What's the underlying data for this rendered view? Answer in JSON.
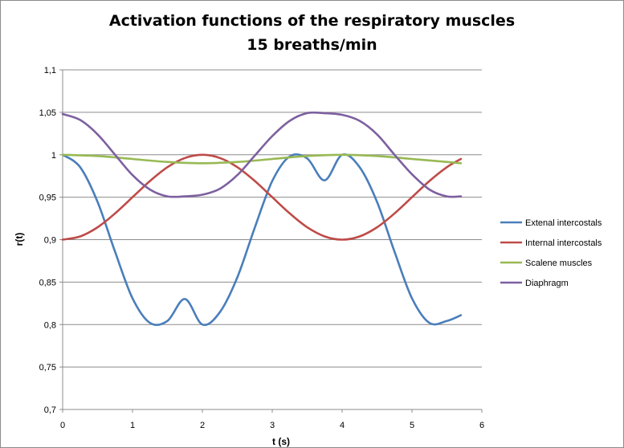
{
  "chart_data": {
    "type": "line",
    "title_line1": "Activation functions of the respiratory muscles",
    "title_line2": "15 breaths/min",
    "xlabel": "t (s)",
    "ylabel": "r(t)",
    "xlim": [
      0,
      6
    ],
    "ylim": [
      0.7,
      1.1
    ],
    "x_ticks": [
      "0",
      "1",
      "2",
      "3",
      "4",
      "5",
      "6"
    ],
    "y_ticks": [
      "0,7",
      "0,75",
      "0,8",
      "0,85",
      "0,9",
      "0,95",
      "1",
      "1,05",
      "1,1"
    ],
    "grid": "horizontal",
    "legend_position": "right",
    "series": [
      {
        "name": "Extenal intercostals",
        "color": "#4a7ebb",
        "x": [
          0,
          0.25,
          0.5,
          0.75,
          1.0,
          1.25,
          1.5,
          1.75,
          2.0,
          2.25,
          2.5,
          2.75,
          3.0,
          3.25,
          3.5,
          3.75,
          4.0,
          4.25,
          4.5,
          4.75,
          5.0,
          5.25,
          5.5,
          5.7
        ],
        "y": [
          1.0,
          0.9854,
          0.9444,
          0.8857,
          0.8309,
          0.8019,
          0.8043,
          0.8301,
          0.8,
          0.8146,
          0.8556,
          0.9143,
          0.9691,
          0.9981,
          0.9957,
          0.9699,
          1.0,
          0.9854,
          0.9444,
          0.8857,
          0.8309,
          0.8019,
          0.8043,
          0.811
        ]
      },
      {
        "name": "Internal intercostals",
        "color": "#be4b48",
        "x": [
          0,
          0.25,
          0.5,
          0.75,
          1.0,
          1.25,
          1.5,
          1.75,
          2.0,
          2.25,
          2.5,
          2.75,
          3.0,
          3.25,
          3.5,
          3.75,
          4.0,
          4.25,
          4.5,
          4.75,
          5.0,
          5.25,
          5.5,
          5.7
        ],
        "y": [
          0.9,
          0.9038,
          0.9146,
          0.9309,
          0.95,
          0.9691,
          0.9854,
          0.9962,
          1.0,
          0.9962,
          0.9854,
          0.9691,
          0.95,
          0.9309,
          0.9146,
          0.9038,
          0.9,
          0.9038,
          0.9146,
          0.9309,
          0.95,
          0.9691,
          0.9854,
          0.995
        ]
      },
      {
        "name": "Scalene muscles",
        "color": "#98b954",
        "x": [
          0,
          0.5,
          1.0,
          1.5,
          2.0,
          2.5,
          3.0,
          3.5,
          4.0,
          4.5,
          5.0,
          5.5,
          5.7
        ],
        "y": [
          1.0,
          0.9985,
          0.995,
          0.9915,
          0.99,
          0.9915,
          0.995,
          0.9985,
          1.0,
          0.9985,
          0.995,
          0.9915,
          0.99
        ]
      },
      {
        "name": "Diaphragm",
        "color": "#7d60a0",
        "x": [
          0,
          0.25,
          0.5,
          0.75,
          1.0,
          1.25,
          1.5,
          1.75,
          2.0,
          2.25,
          2.5,
          2.75,
          3.0,
          3.25,
          3.5,
          3.75,
          4.0,
          4.25,
          4.5,
          4.75,
          5.0,
          5.25,
          5.5,
          5.7
        ],
        "y": [
          1.048,
          1.041,
          1.024,
          1.0,
          0.976,
          0.959,
          0.951,
          0.951,
          0.953,
          0.96,
          0.976,
          0.999,
          1.022,
          1.04,
          1.049,
          1.049,
          1.047,
          1.04,
          1.024,
          1.0,
          0.977,
          0.959,
          0.951,
          0.951
        ]
      }
    ]
  }
}
